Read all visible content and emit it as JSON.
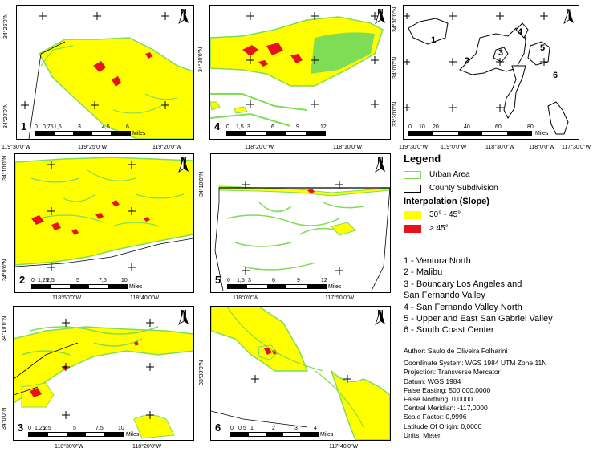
{
  "panels": [
    {
      "num": "1",
      "x_labels": [
        "119°30'0\"W",
        "119°25'0\"W",
        "119°20'0\"W"
      ],
      "y_labels": [
        "34°25'0\"N",
        "34°20'0\"N"
      ],
      "scale_ticks": [
        "0",
        "0,75",
        "1,5",
        "3",
        "4,5",
        "6"
      ],
      "scale_unit": "Miles"
    },
    {
      "num": "4",
      "x_labels": [
        "118°20'0\"W",
        "118°10'0\"W"
      ],
      "y_labels": [
        "34°20'0\"N"
      ],
      "scale_ticks": [
        "0",
        "1,5",
        "3",
        "6",
        "9",
        "12"
      ],
      "scale_unit": "Miles"
    },
    {
      "num": "",
      "x_labels": [
        "119°30'0\"W",
        "119°0'0\"W",
        "118°30'0\"W",
        "118°0'0\"W",
        "117°30'0\"W"
      ],
      "y_labels": [
        "34°30'0\"N",
        "34°0'0\"N",
        "33°30'0\"N"
      ],
      "scale_ticks": [
        "0",
        "10",
        "20",
        "40",
        "60",
        "80"
      ],
      "scale_unit": "Miles",
      "region_labels": [
        "1",
        "2",
        "3",
        "4",
        "5",
        "6"
      ]
    },
    {
      "num": "2",
      "x_labels": [
        "118°50'0\"W",
        "118°40'0\"W"
      ],
      "y_labels": [
        "34°10'0\"N",
        "34°0'0\"N"
      ],
      "scale_ticks": [
        "0",
        "1,25",
        "2,5",
        "5",
        "7,5",
        "10"
      ],
      "scale_unit": "Miles"
    },
    {
      "num": "5",
      "x_labels": [
        "118°0'0\"W",
        "117°50'0\"W"
      ],
      "y_labels": [
        "34°10'0\"N"
      ],
      "scale_ticks": [
        "0",
        "1,5",
        "3",
        "6",
        "9",
        "12"
      ],
      "scale_unit": "Miles"
    },
    {
      "num": "3",
      "x_labels": [
        "118°30'0\"W",
        "118°20'0\"W"
      ],
      "y_labels": [
        "34°10'0\"N",
        "34°0'0\"N"
      ],
      "scale_ticks": [
        "0",
        "1,25",
        "2,5",
        "5",
        "7,5",
        "10"
      ],
      "scale_unit": "Miles"
    },
    {
      "num": "6",
      "x_labels": [
        "117°40'0\"W"
      ],
      "y_labels": [
        "33°30'0\"N"
      ],
      "scale_ticks": [
        "0",
        "0,5",
        "1",
        "2",
        "3",
        "4"
      ],
      "scale_unit": "Miles"
    }
  ],
  "north_label": "N",
  "legend": {
    "title": "Legend",
    "urban": "Urban Area",
    "county": "County Subdivision",
    "interp_title": "Interpolation (Slope)",
    "class1": "30° - 45°",
    "class2": "> 45°",
    "colors": {
      "urban": "#7fdc55",
      "county": "#000000",
      "class1": "#ffff00",
      "class2": "#e8121e"
    }
  },
  "sites": [
    "1 - Ventura North",
    "2 - Malibu",
    "3 - Boundary Los Angeles and",
    "San Fernando Valley",
    "4 - San Fernando Valley North",
    "5 - Upper and East San Gabriel Valley",
    "6 - South Coast Center"
  ],
  "meta": {
    "author": "Author: Saulo de Oliveira Folharini",
    "lines": [
      "Coordinate System: WGS 1984 UTM Zone 11N",
      "Projection: Transverse Mercator",
      "Datum: WGS 1984",
      "False Easting: 500.000,0000",
      "False Northing: 0,0000",
      "Central Meridian: -117,0000",
      "Scale Factor: 0,9996",
      "Latitude Of Origin: 0,0000",
      "Units: Meter"
    ]
  }
}
